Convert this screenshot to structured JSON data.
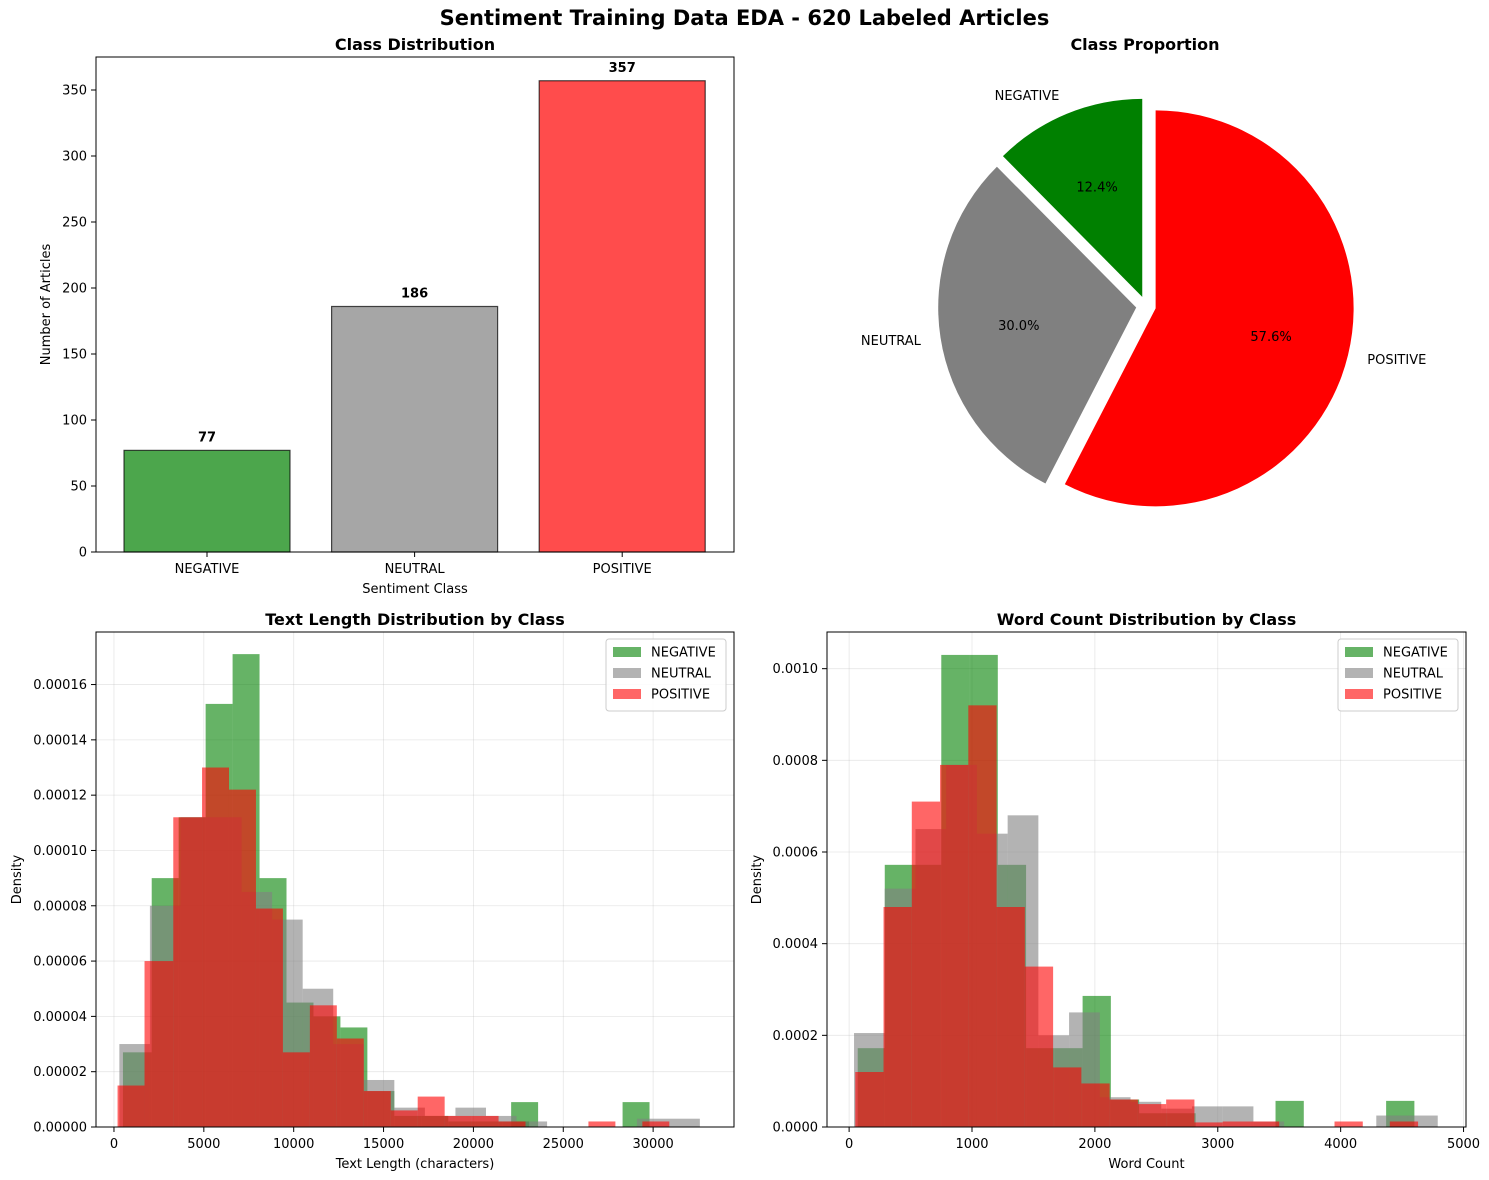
{
  "suptitle": "Sentiment Training Data EDA - 620 Labeled Articles",
  "colors": {
    "NEGATIVE": "#008000",
    "NEUTRAL": "#808080",
    "POSITIVE": "#ff0000"
  },
  "chart_data": [
    {
      "type": "bar",
      "title": "Class Distribution",
      "xlabel": "Sentiment Class",
      "ylabel": "Number of Articles",
      "categories": [
        "NEGATIVE",
        "NEUTRAL",
        "POSITIVE"
      ],
      "values": [
        77,
        186,
        357
      ],
      "data_labels": [
        "77",
        "186",
        "357"
      ],
      "ylim": [
        0,
        375
      ],
      "yticks": [
        0,
        50,
        100,
        150,
        200,
        250,
        300,
        350
      ],
      "grid": false
    },
    {
      "type": "pie",
      "title": "Class Proportion",
      "labels": [
        "NEGATIVE",
        "NEUTRAL",
        "POSITIVE"
      ],
      "values": [
        77,
        186,
        357
      ],
      "percent_labels": [
        "12.4%",
        "30.0%",
        "57.6%"
      ],
      "exploded": true
    },
    {
      "type": "histogram",
      "title": "Text Length Distribution by Class",
      "xlabel": "Text Length (characters)",
      "ylabel": "Density",
      "xlim": [
        -1000,
        34500
      ],
      "ylim": [
        0,
        0.000179
      ],
      "xticks": [
        0,
        5000,
        10000,
        15000,
        20000,
        25000,
        30000
      ],
      "yticks": [
        "0.00000",
        "0.00002",
        "0.00004",
        "0.00006",
        "0.00008",
        "0.00010",
        "0.00012",
        "0.00014",
        "0.00016"
      ],
      "grid": true,
      "legend": "top-right",
      "series": [
        {
          "name": "NEGATIVE",
          "bins": [
            [
              500,
              2100,
              2.7e-05
            ],
            [
              2100,
              3600,
              9e-05
            ],
            [
              3600,
              5100,
              0.000112
            ],
            [
              5100,
              6600,
              0.000153
            ],
            [
              6600,
              8100,
              0.000171
            ],
            [
              8100,
              9600,
              9e-05
            ],
            [
              9600,
              11100,
              4.5e-05
            ],
            [
              11100,
              12600,
              4e-05
            ],
            [
              12600,
              14100,
              3.6e-05
            ],
            [
              14100,
              15600,
              1.3e-05
            ],
            [
              15600,
              17100,
              4e-06
            ],
            [
              17100,
              18600,
              4e-06
            ],
            [
              18600,
              20100,
              2e-06
            ],
            [
              20100,
              21600,
              2e-06
            ],
            [
              21600,
              23100,
              2e-06
            ],
            [
              22100,
              23600,
              9e-06
            ],
            [
              26800,
              28300,
              0
            ],
            [
              28300,
              29800,
              9e-06
            ]
          ]
        },
        {
          "name": "NEUTRAL",
          "bins": [
            [
              300,
              2000,
              3e-05
            ],
            [
              2000,
              3700,
              8e-05
            ],
            [
              3700,
              5400,
              0.000112
            ],
            [
              5400,
              7100,
              0.000112
            ],
            [
              7100,
              8800,
              8.5e-05
            ],
            [
              8800,
              10500,
              7.5e-05
            ],
            [
              10500,
              12200,
              5e-05
            ],
            [
              12200,
              13900,
              3e-05
            ],
            [
              13900,
              15600,
              1.7e-05
            ],
            [
              15600,
              17300,
              7e-06
            ],
            [
              17300,
              19000,
              4e-06
            ],
            [
              19000,
              20700,
              7e-06
            ],
            [
              20700,
              22400,
              4e-06
            ],
            [
              22400,
              24100,
              2e-06
            ],
            [
              29100,
              30800,
              3e-06
            ],
            [
              30800,
              32600,
              3e-06
            ]
          ]
        },
        {
          "name": "POSITIVE",
          "bins": [
            [
              200,
              1700,
              1.5e-05
            ],
            [
              1700,
              3300,
              6e-05
            ],
            [
              3300,
              4900,
              0.000112
            ],
            [
              4900,
              6400,
              0.00013
            ],
            [
              6400,
              7900,
              0.000122
            ],
            [
              7900,
              9400,
              7.9e-05
            ],
            [
              9400,
              10900,
              2.7e-05
            ],
            [
              10900,
              12400,
              4.4e-05
            ],
            [
              12400,
              13900,
              3.2e-05
            ],
            [
              13900,
              15400,
              1.3e-05
            ],
            [
              15400,
              16900,
              6e-06
            ],
            [
              16900,
              18400,
              1.1e-05
            ],
            [
              18400,
              19900,
              4e-06
            ],
            [
              19900,
              21400,
              4e-06
            ],
            [
              21400,
              22900,
              2e-06
            ],
            [
              26400,
              27900,
              2e-06
            ],
            [
              29400,
              30900,
              2e-06
            ]
          ]
        }
      ]
    },
    {
      "type": "histogram",
      "title": "Word Count Distribution by Class",
      "xlabel": "Word Count",
      "ylabel": "Density",
      "xlim": [
        -180,
        5020
      ],
      "ylim": [
        0,
        0.00108
      ],
      "xticks": [
        0,
        1000,
        2000,
        3000,
        4000,
        5000
      ],
      "yticks": [
        "0.0000",
        "0.0002",
        "0.0004",
        "0.0006",
        "0.0008",
        "0.0010"
      ],
      "grid": true,
      "legend": "top-right",
      "series": [
        {
          "name": "NEGATIVE",
          "bins": [
            [
              70,
              290,
              0.000172
            ],
            [
              290,
              520,
              0.000572
            ],
            [
              520,
              750,
              0.000572
            ],
            [
              750,
              980,
              0.00103
            ],
            [
              980,
              1210,
              0.00103
            ],
            [
              1210,
              1440,
              0.000572
            ],
            [
              1440,
              1670,
              0.000172
            ],
            [
              1670,
              1900,
              0.000172
            ],
            [
              1900,
              2130,
              0.000286
            ],
            [
              2130,
              2360,
              6e-05
            ],
            [
              2360,
              2590,
              3e-05
            ],
            [
              2590,
              2820,
              3e-05
            ],
            [
              3470,
              3700,
              5.7e-05
            ],
            [
              4370,
              4600,
              5.7e-05
            ]
          ]
        },
        {
          "name": "NEUTRAL",
          "bins": [
            [
              40,
              290,
              0.000205
            ],
            [
              290,
              540,
              0.00052
            ],
            [
              540,
              790,
              0.00065
            ],
            [
              790,
              1040,
              0.00079
            ],
            [
              1040,
              1290,
              0.00064
            ],
            [
              1290,
              1540,
              0.00068
            ],
            [
              1540,
              1790,
              0.0002
            ],
            [
              1790,
              2040,
              0.00025
            ],
            [
              2040,
              2290,
              6.5e-05
            ],
            [
              2290,
              2540,
              5.5e-05
            ],
            [
              2540,
              2790,
              4e-05
            ],
            [
              2790,
              3040,
              4.5e-05
            ],
            [
              3040,
              3290,
              4.5e-05
            ],
            [
              3290,
              3540,
              1.2e-05
            ],
            [
              4290,
              4540,
              2.5e-05
            ],
            [
              4540,
              4790,
              2.5e-05
            ]
          ]
        },
        {
          "name": "POSITIVE",
          "bins": [
            [
              50,
              280,
              0.00012
            ],
            [
              280,
              510,
              0.00048
            ],
            [
              510,
              740,
              0.00071
            ],
            [
              740,
              970,
              0.00079
            ],
            [
              970,
              1200,
              0.00092
            ],
            [
              1200,
              1430,
              0.00048
            ],
            [
              1430,
              1660,
              0.00035
            ],
            [
              1660,
              1890,
              0.00013
            ],
            [
              1890,
              2120,
              9.5e-05
            ],
            [
              2120,
              2350,
              6e-05
            ],
            [
              2350,
              2580,
              5e-05
            ],
            [
              2580,
              2810,
              6e-05
            ],
            [
              2810,
              3040,
              1e-05
            ],
            [
              3040,
              3270,
              1.2e-05
            ],
            [
              3270,
              3500,
              1.2e-05
            ],
            [
              3950,
              4180,
              1.2e-05
            ],
            [
              4400,
              4630,
              1.2e-05
            ]
          ]
        }
      ]
    }
  ]
}
